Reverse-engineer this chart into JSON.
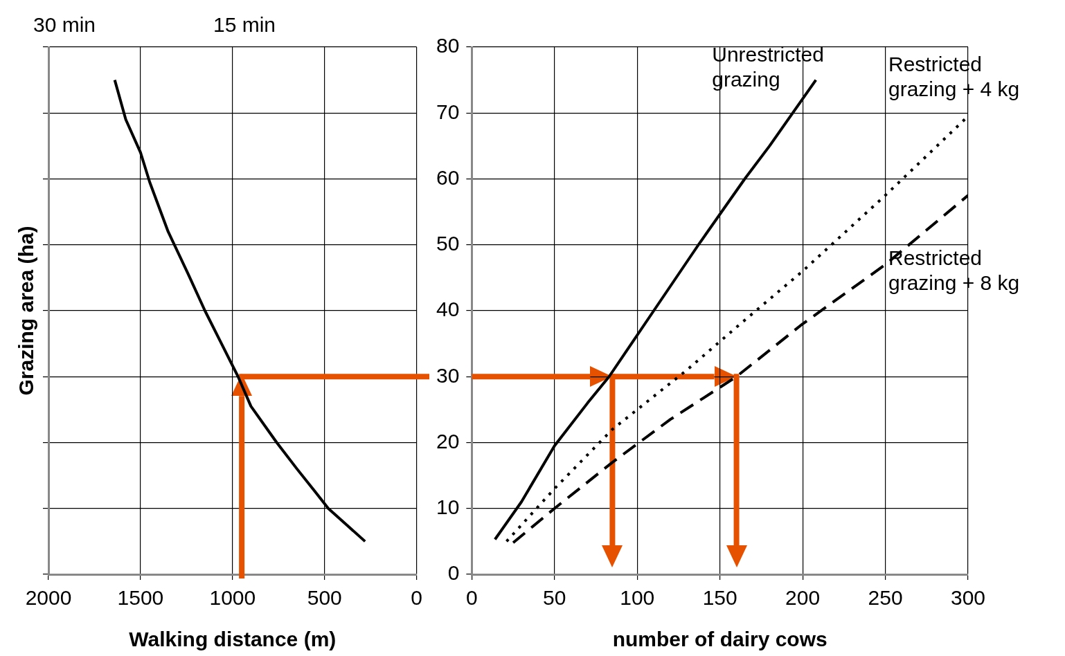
{
  "chart_data": [
    {
      "type": "line",
      "xlabel": "Walking distance (m)",
      "ylabel": "Grazing area (ha)",
      "xlim": [
        2000,
        0
      ],
      "xticks": [
        2000,
        1500,
        1000,
        500,
        0
      ],
      "ylim": [
        0,
        80
      ],
      "yticks": [
        0,
        10,
        20,
        30,
        40,
        50,
        60,
        70,
        80
      ],
      "grid": true,
      "tick_labels": "x",
      "marker": "none",
      "legend": false,
      "annotations": [
        "30 min",
        "15 min"
      ],
      "ref_lines": [
        {
          "axis": "x",
          "value": 950,
          "color": "#e65100"
        },
        {
          "axis": "y",
          "value": 30,
          "color": "#e65100"
        }
      ],
      "series": [
        {
          "color": "#000000",
          "line_style": "solid",
          "x": [
            1640,
            1580,
            1500,
            1450,
            1350,
            1240,
            1150,
            1060,
            970,
            900,
            760,
            650,
            550,
            480,
            280
          ],
          "values": [
            75,
            69,
            64,
            59.5,
            52,
            45.5,
            40,
            35,
            30,
            25.5,
            20,
            16,
            12.5,
            10,
            5
          ]
        }
      ]
    },
    {
      "type": "line",
      "xlabel": "number of dairy cows",
      "xlim": [
        0,
        300
      ],
      "xticks": [
        0,
        50,
        100,
        150,
        200,
        250,
        300
      ],
      "ylim": [
        0,
        80
      ],
      "yticks": [
        0,
        10,
        20,
        30,
        40,
        50,
        60,
        70,
        80
      ],
      "grid": true,
      "marker": "none",
      "legend": false,
      "ref_lines": [
        {
          "axis": "y",
          "value": 30,
          "color": "#e65100"
        },
        {
          "axis": "x",
          "value": 85,
          "color": "#e65100"
        },
        {
          "axis": "x",
          "value": 160,
          "color": "#e65100"
        }
      ],
      "series": [
        {
          "name": "Unrestricted grazing",
          "color": "#000000",
          "line_style": "solid",
          "x": [
            14,
            30,
            50,
            70,
            83,
            110,
            137,
            165,
            180,
            208
          ],
          "values": [
            5.3,
            11,
            19.5,
            26,
            30,
            40,
            50,
            60,
            65,
            75
          ]
        },
        {
          "name": "Restricted grazing + 4 kg",
          "color": "#000000",
          "line_style": "dotted",
          "x": [
            21,
            50,
            85,
            130,
            160,
            200,
            250,
            300
          ],
          "values": [
            5,
            13,
            22,
            31,
            37.5,
            46,
            57.5,
            69.5
          ]
        },
        {
          "name": "Restricted grazing + 8 kg",
          "color": "#000000",
          "line_style": "dashed",
          "x": [
            25,
            50,
            85,
            120,
            160,
            200,
            250,
            300
          ],
          "values": [
            4.8,
            10,
            17,
            23.5,
            30,
            38,
            47,
            57.5
          ]
        }
      ]
    }
  ]
}
